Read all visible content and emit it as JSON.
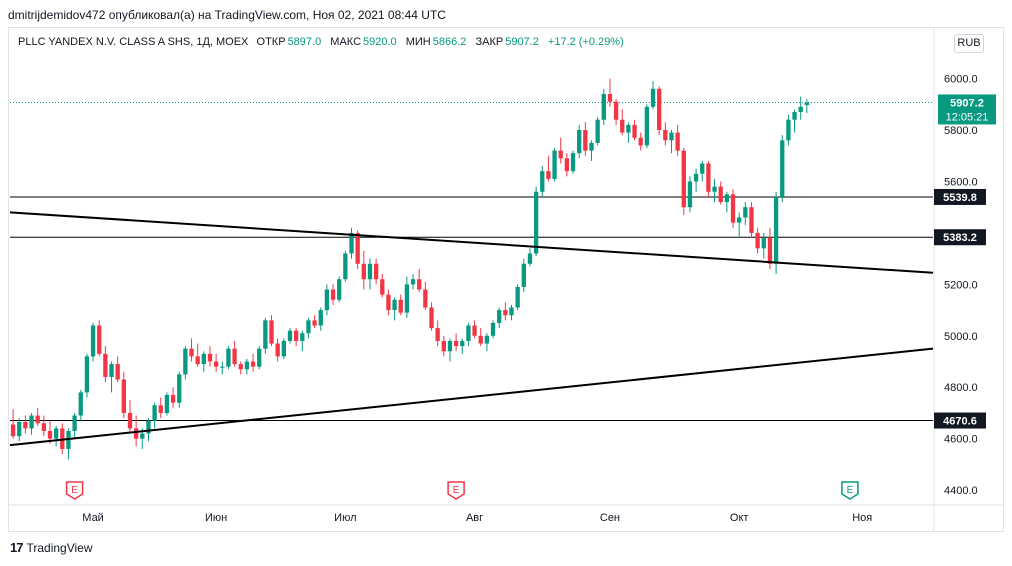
{
  "header": {
    "published_by": "dmitrijdemidov472 опубликовал(а) на TradingView.com, Ноя 02, 2021 08:44 UTC"
  },
  "legend": {
    "symbol": "PLLC YANDEX N.V. CLASS A SHS, 1Д, MOEX",
    "open_label": "ОТКР",
    "open_value": "5897.0",
    "high_label": "МАКС",
    "high_value": "5920.0",
    "low_label": "МИН",
    "low_value": "5866.2",
    "close_label": "ЗАКР",
    "close_value": "5907.2",
    "change": "+17.2 (+0.29%)"
  },
  "currency_button": "RUB",
  "footer": {
    "brand": "TradingView",
    "logo_mark": "17"
  },
  "colors": {
    "up": "#089981",
    "down": "#f23645",
    "line": "#000000",
    "grid": "#e0e3eb",
    "last_price": "#089981"
  },
  "chart_data": {
    "type": "candlestick",
    "ylim": [
      4350,
      6080
    ],
    "y_ticks": [
      {
        "value": 6000,
        "label": "6000.0"
      },
      {
        "value": 5800,
        "label": "5800.0"
      },
      {
        "value": 5600,
        "label": "5600.0"
      },
      {
        "value": 5200,
        "label": "5200.0"
      },
      {
        "value": 5000,
        "label": "5000.0"
      },
      {
        "value": 4800,
        "label": "4800.0"
      },
      {
        "value": 4600,
        "label": "4600.0"
      },
      {
        "value": 4400,
        "label": "4400.0"
      }
    ],
    "x_ticks": [
      {
        "index": 13,
        "label": "Май"
      },
      {
        "index": 33,
        "label": "Июн"
      },
      {
        "index": 54,
        "label": "Июл"
      },
      {
        "index": 75,
        "label": "Авг"
      },
      {
        "index": 97,
        "label": "Сен"
      },
      {
        "index": 118,
        "label": "Окт"
      },
      {
        "index": 138,
        "label": "Ноя"
      }
    ],
    "x_count": 150,
    "horizontal_lines": [
      {
        "value": 5539.8,
        "label": "5539.8"
      },
      {
        "value": 5383.2,
        "label": "5383.2"
      },
      {
        "value": 4670.6,
        "label": "4670.6"
      }
    ],
    "trend_lines": [
      {
        "from": [
          0,
          5480
        ],
        "to": [
          150,
          5245
        ]
      },
      {
        "from": [
          0,
          4575
        ],
        "to": [
          150,
          4950
        ]
      }
    ],
    "last_price": {
      "value": 5907.2,
      "label": "5907.2",
      "countdown": "12:05:21"
    },
    "earnings_markers": [
      {
        "index": 10,
        "label": "E",
        "style": "past"
      },
      {
        "index": 72,
        "label": "E",
        "style": "past"
      },
      {
        "index": 136,
        "label": "E",
        "style": "upcoming"
      }
    ],
    "candles": [
      [
        4655,
        4715,
        4600,
        4610
      ],
      [
        4610,
        4680,
        4590,
        4665
      ],
      [
        4665,
        4690,
        4620,
        4640
      ],
      [
        4640,
        4700,
        4615,
        4690
      ],
      [
        4690,
        4720,
        4650,
        4660
      ],
      [
        4660,
        4690,
        4610,
        4630
      ],
      [
        4630,
        4670,
        4580,
        4600
      ],
      [
        4600,
        4650,
        4570,
        4640
      ],
      [
        4640,
        4660,
        4540,
        4560
      ],
      [
        4560,
        4640,
        4520,
        4630
      ],
      [
        4630,
        4700,
        4600,
        4690
      ],
      [
        4690,
        4790,
        4670,
        4780
      ],
      [
        4780,
        4930,
        4760,
        4920
      ],
      [
        4920,
        5050,
        4900,
        5040
      ],
      [
        5040,
        5060,
        4920,
        4930
      ],
      [
        4930,
        4960,
        4820,
        4840
      ],
      [
        4840,
        4900,
        4780,
        4890
      ],
      [
        4890,
        4920,
        4820,
        4830
      ],
      [
        4830,
        4860,
        4680,
        4700
      ],
      [
        4700,
        4750,
        4620,
        4640
      ],
      [
        4640,
        4690,
        4570,
        4600
      ],
      [
        4600,
        4640,
        4560,
        4620
      ],
      [
        4620,
        4680,
        4590,
        4670
      ],
      [
        4670,
        4740,
        4640,
        4730
      ],
      [
        4730,
        4760,
        4680,
        4700
      ],
      [
        4700,
        4780,
        4690,
        4770
      ],
      [
        4770,
        4800,
        4720,
        4740
      ],
      [
        4740,
        4860,
        4720,
        4850
      ],
      [
        4850,
        4960,
        4830,
        4950
      ],
      [
        4950,
        4990,
        4900,
        4920
      ],
      [
        4920,
        4970,
        4880,
        4890
      ],
      [
        4890,
        4940,
        4860,
        4930
      ],
      [
        4930,
        4960,
        4880,
        4900
      ],
      [
        4900,
        4930,
        4860,
        4880
      ],
      [
        4880,
        4900,
        4850,
        4880
      ],
      [
        4880,
        4960,
        4870,
        4950
      ],
      [
        4950,
        4980,
        4880,
        4890
      ],
      [
        4890,
        4900,
        4850,
        4870
      ],
      [
        4870,
        4910,
        4850,
        4900
      ],
      [
        4900,
        4930,
        4860,
        4880
      ],
      [
        4880,
        4960,
        4870,
        4950
      ],
      [
        4950,
        5070,
        4930,
        5060
      ],
      [
        5060,
        5080,
        4960,
        4970
      ],
      [
        4970,
        4990,
        4900,
        4920
      ],
      [
        4920,
        4990,
        4910,
        4980
      ],
      [
        4980,
        5030,
        4970,
        5020
      ],
      [
        5020,
        5030,
        4960,
        4980
      ],
      [
        4980,
        5020,
        4940,
        5010
      ],
      [
        5010,
        5070,
        4990,
        5060
      ],
      [
        5060,
        5080,
        5030,
        5040
      ],
      [
        5040,
        5110,
        5020,
        5100
      ],
      [
        5100,
        5200,
        5080,
        5180
      ],
      [
        5180,
        5200,
        5120,
        5140
      ],
      [
        5140,
        5230,
        5130,
        5220
      ],
      [
        5220,
        5330,
        5210,
        5320
      ],
      [
        5320,
        5420,
        5300,
        5400
      ],
      [
        5400,
        5410,
        5260,
        5280
      ],
      [
        5280,
        5330,
        5180,
        5220
      ],
      [
        5220,
        5300,
        5180,
        5280
      ],
      [
        5280,
        5300,
        5200,
        5220
      ],
      [
        5220,
        5240,
        5150,
        5160
      ],
      [
        5160,
        5180,
        5080,
        5100
      ],
      [
        5100,
        5150,
        5060,
        5140
      ],
      [
        5140,
        5160,
        5080,
        5090
      ],
      [
        5090,
        5230,
        5070,
        5200
      ],
      [
        5200,
        5240,
        5180,
        5220
      ],
      [
        5220,
        5260,
        5170,
        5180
      ],
      [
        5180,
        5210,
        5100,
        5110
      ],
      [
        5110,
        5130,
        5020,
        5030
      ],
      [
        5030,
        5060,
        4960,
        4980
      ],
      [
        4980,
        5000,
        4920,
        4940
      ],
      [
        4940,
        4990,
        4900,
        4980
      ],
      [
        4980,
        5010,
        4940,
        4960
      ],
      [
        4960,
        4990,
        4930,
        4980
      ],
      [
        4980,
        5050,
        4960,
        5040
      ],
      [
        5040,
        5060,
        4990,
        5000
      ],
      [
        5000,
        5030,
        4960,
        4970
      ],
      [
        4970,
        5010,
        4940,
        5000
      ],
      [
        5000,
        5060,
        4990,
        5050
      ],
      [
        5050,
        5110,
        5030,
        5100
      ],
      [
        5100,
        5130,
        5060,
        5080
      ],
      [
        5080,
        5120,
        5060,
        5110
      ],
      [
        5110,
        5200,
        5100,
        5190
      ],
      [
        5190,
        5300,
        5170,
        5280
      ],
      [
        5280,
        5340,
        5270,
        5320
      ],
      [
        5320,
        5580,
        5310,
        5560
      ],
      [
        5560,
        5660,
        5540,
        5640
      ],
      [
        5640,
        5700,
        5600,
        5610
      ],
      [
        5610,
        5730,
        5600,
        5720
      ],
      [
        5720,
        5770,
        5670,
        5690
      ],
      [
        5690,
        5710,
        5620,
        5640
      ],
      [
        5640,
        5720,
        5630,
        5710
      ],
      [
        5710,
        5820,
        5690,
        5800
      ],
      [
        5800,
        5830,
        5700,
        5720
      ],
      [
        5720,
        5760,
        5680,
        5750
      ],
      [
        5750,
        5850,
        5740,
        5840
      ],
      [
        5840,
        5960,
        5820,
        5940
      ],
      [
        5940,
        6000,
        5890,
        5910
      ],
      [
        5910,
        5920,
        5820,
        5840
      ],
      [
        5840,
        5880,
        5780,
        5790
      ],
      [
        5790,
        5830,
        5750,
        5820
      ],
      [
        5820,
        5840,
        5760,
        5770
      ],
      [
        5770,
        5790,
        5720,
        5740
      ],
      [
        5740,
        5900,
        5730,
        5890
      ],
      [
        5890,
        5990,
        5880,
        5960
      ],
      [
        5960,
        5970,
        5780,
        5800
      ],
      [
        5800,
        5830,
        5740,
        5760
      ],
      [
        5760,
        5800,
        5710,
        5790
      ],
      [
        5790,
        5820,
        5700,
        5720
      ],
      [
        5720,
        5730,
        5470,
        5500
      ],
      [
        5500,
        5620,
        5480,
        5600
      ],
      [
        5600,
        5650,
        5560,
        5630
      ],
      [
        5630,
        5680,
        5600,
        5670
      ],
      [
        5670,
        5680,
        5540,
        5560
      ],
      [
        5560,
        5610,
        5520,
        5580
      ],
      [
        5580,
        5600,
        5510,
        5520
      ],
      [
        5520,
        5560,
        5480,
        5550
      ],
      [
        5550,
        5570,
        5420,
        5440
      ],
      [
        5440,
        5480,
        5380,
        5460
      ],
      [
        5460,
        5520,
        5430,
        5500
      ],
      [
        5500,
        5520,
        5380,
        5400
      ],
      [
        5400,
        5420,
        5320,
        5340
      ],
      [
        5340,
        5400,
        5300,
        5380
      ],
      [
        5380,
        5420,
        5260,
        5280
      ],
      [
        5280,
        5560,
        5240,
        5540
      ],
      [
        5540,
        5780,
        5520,
        5760
      ],
      [
        5760,
        5860,
        5740,
        5840
      ],
      [
        5840,
        5880,
        5790,
        5870
      ],
      [
        5870,
        5930,
        5840,
        5890
      ],
      [
        5897,
        5920,
        5866.2,
        5907.2
      ]
    ]
  }
}
